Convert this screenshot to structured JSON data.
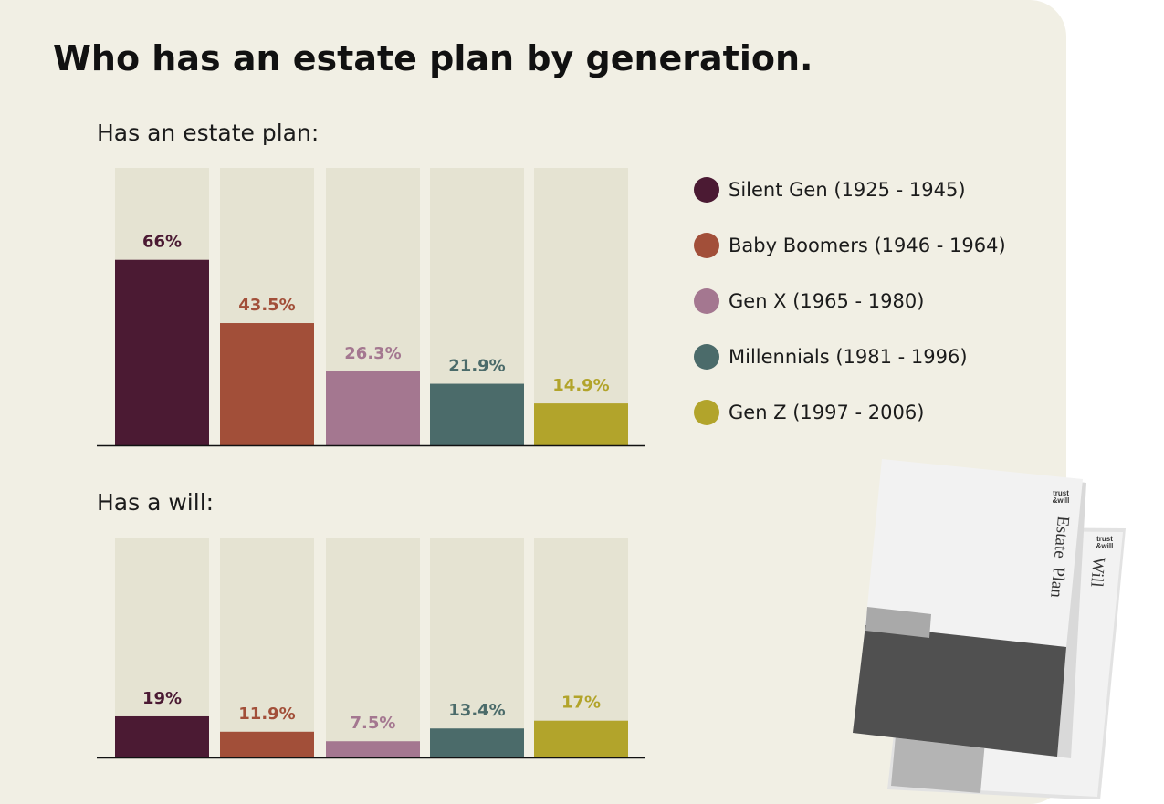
{
  "title": "Who has an estate plan by generation.",
  "colors": {
    "background": "#f1efe4",
    "bar_track": "#e5e3d2",
    "silent": "#4b1a33",
    "boomers": "#a24f39",
    "genx": "#a47790",
    "millennials": "#4b6b6a",
    "genz": "#b2a42b"
  },
  "legend": [
    {
      "label": "Silent Gen (1925 - 1945)",
      "color": "#4b1a33"
    },
    {
      "label": "Baby Boomers (1946 - 1964)",
      "color": "#a24f39"
    },
    {
      "label": "Gen X (1965 - 1980)",
      "color": "#a47790"
    },
    {
      "label": "Millennials (1981 - 1996)",
      "color": "#4b6b6a"
    },
    {
      "label": "Gen Z (1997 - 2006)",
      "color": "#b2a42b"
    }
  ],
  "chart_data": [
    {
      "type": "bar",
      "title": "Has an estate plan:",
      "categories": [
        "Silent Gen (1925 - 1945)",
        "Baby Boomers (1946 - 1964)",
        "Gen X (1965 - 1980)",
        "Millennials (1981 - 1996)",
        "Gen Z (1997 - 2006)"
      ],
      "values": [
        66,
        43.5,
        26.3,
        21.9,
        14.9
      ],
      "labels": [
        "66%",
        "43.5%",
        "26.3%",
        "21.9%",
        "14.9%"
      ],
      "ylim": [
        0,
        100
      ],
      "grid": false,
      "legend_position": "right"
    },
    {
      "type": "bar",
      "title": "Has a will:",
      "categories": [
        "Silent Gen (1925 - 1945)",
        "Baby Boomers (1946 - 1964)",
        "Gen X (1965 - 1980)",
        "Millennials (1981 - 1996)",
        "Gen Z (1997 - 2006)"
      ],
      "values": [
        19,
        11.9,
        7.5,
        13.4,
        17
      ],
      "labels": [
        "19%",
        "11.9%",
        "7.5%",
        "13.4%",
        "17%"
      ],
      "ylim": [
        0,
        100
      ],
      "grid": false,
      "legend_position": "right"
    }
  ],
  "illustration": {
    "estate_plan_doc": {
      "logo": "trust & will",
      "label": "Estate Plan"
    },
    "will_doc": {
      "logo": "trust & will",
      "label": "Will"
    }
  }
}
